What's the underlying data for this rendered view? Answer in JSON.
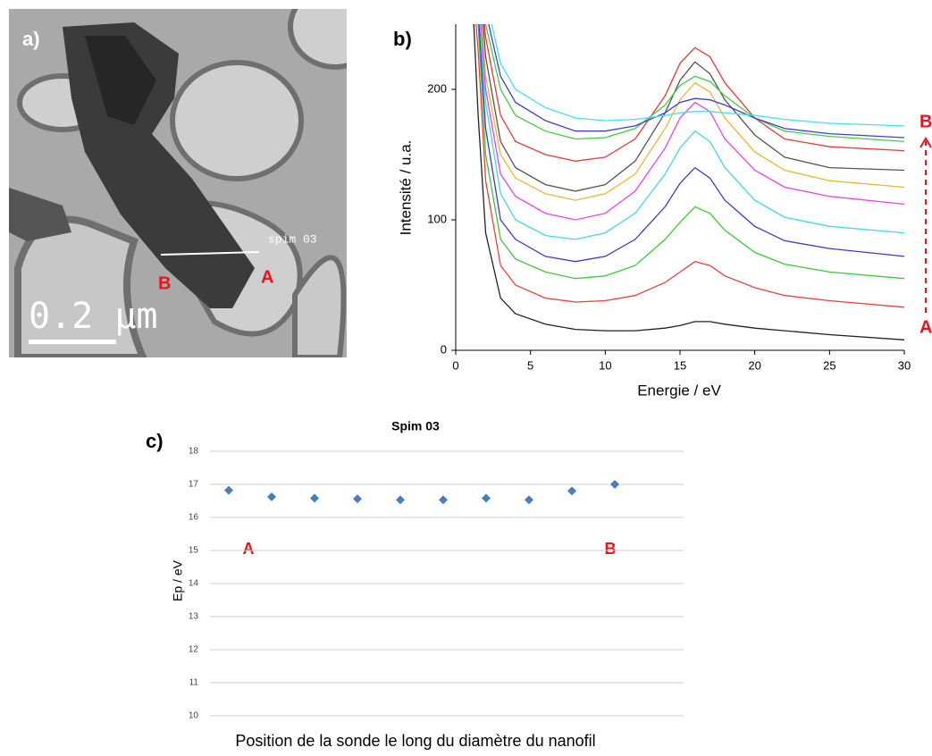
{
  "image_panel": {
    "label": "a)",
    "probe_label": "spim 03",
    "point_a": "A",
    "point_b": "B",
    "scale_bar": "0.2 µm"
  },
  "chart_data": [
    {
      "type": "line",
      "label": "b)",
      "xlabel": "Energie / eV",
      "ylabel": "Intensité / u.a.",
      "xlim": [
        0,
        30
      ],
      "xticks": [
        0,
        5,
        10,
        15,
        20,
        25,
        30
      ],
      "ylim": [
        0,
        250
      ],
      "yticks": [
        0,
        100,
        200
      ],
      "annotations": {
        "top": "B",
        "bottom": "A"
      },
      "x": [
        1,
        1.5,
        2,
        3,
        4,
        6,
        8,
        10,
        12,
        14,
        15,
        16,
        17,
        18,
        20,
        22,
        25,
        30
      ],
      "series": [
        {
          "color": "#222222",
          "values": [
            300,
            180,
            90,
            40,
            28,
            20,
            16,
            15,
            15,
            17,
            19,
            22,
            22,
            20,
            17,
            15,
            12,
            8
          ]
        },
        {
          "color": "#e8423f",
          "values": [
            300,
            230,
            130,
            65,
            50,
            40,
            37,
            38,
            42,
            52,
            60,
            68,
            65,
            57,
            48,
            42,
            38,
            33
          ]
        },
        {
          "color": "#3cc83c",
          "values": [
            300,
            250,
            150,
            85,
            70,
            60,
            55,
            57,
            65,
            85,
            98,
            110,
            105,
            92,
            75,
            66,
            60,
            55
          ]
        },
        {
          "color": "#3a3ad0",
          "values": [
            300,
            260,
            170,
            100,
            85,
            72,
            68,
            72,
            85,
            110,
            128,
            140,
            132,
            115,
            95,
            84,
            78,
            72
          ]
        },
        {
          "color": "#3fd8e8",
          "values": [
            300,
            270,
            190,
            120,
            100,
            88,
            85,
            90,
            105,
            135,
            155,
            168,
            160,
            140,
            115,
            102,
            95,
            90
          ]
        },
        {
          "color": "#e845e8",
          "values": [
            300,
            280,
            200,
            135,
            118,
            105,
            100,
            105,
            122,
            155,
            178,
            190,
            183,
            162,
            138,
            125,
            118,
            112
          ]
        },
        {
          "color": "#e8b830",
          "values": [
            300,
            290,
            210,
            150,
            132,
            120,
            115,
            120,
            135,
            170,
            192,
            205,
            198,
            178,
            152,
            138,
            130,
            125
          ]
        },
        {
          "color": "#555555",
          "values": [
            300,
            300,
            225,
            160,
            140,
            127,
            122,
            127,
            145,
            182,
            207,
            221,
            212,
            192,
            165,
            148,
            140,
            138
          ]
        },
        {
          "color": "#e03c3c",
          "values": [
            300,
            300,
            240,
            180,
            160,
            150,
            145,
            148,
            162,
            195,
            220,
            232,
            225,
            205,
            178,
            162,
            156,
            153
          ]
        },
        {
          "color": "#44cc44",
          "values": [
            300,
            300,
            250,
            200,
            180,
            168,
            162,
            163,
            170,
            188,
            203,
            210,
            206,
            195,
            178,
            168,
            164,
            160
          ]
        },
        {
          "color": "#4040d0",
          "values": [
            300,
            300,
            260,
            210,
            190,
            176,
            168,
            168,
            172,
            182,
            190,
            193,
            192,
            188,
            178,
            170,
            166,
            163
          ]
        },
        {
          "color": "#44e0ee",
          "values": [
            300,
            300,
            270,
            220,
            200,
            186,
            178,
            176,
            177,
            180,
            182,
            183,
            183,
            182,
            180,
            177,
            174,
            172
          ]
        }
      ]
    },
    {
      "type": "scatter",
      "label": "c)",
      "title": "Spim 03",
      "xlabel": "Position de la sonde le long du diamètre du nanofil",
      "ylabel": "Ep / eV",
      "categories": [
        null,
        null,
        null,
        null,
        null,
        null,
        null,
        null,
        null,
        null
      ],
      "values": [
        16.82,
        16.62,
        16.58,
        16.56,
        16.53,
        16.53,
        16.58,
        16.53,
        16.8,
        17.0
      ],
      "color": "#4a7ebb",
      "ylim": [
        10,
        18
      ],
      "yticks": [
        10,
        11,
        12,
        13,
        14,
        15,
        16,
        17,
        18
      ],
      "grid": true,
      "annotations": {
        "start": "A",
        "end": "B"
      }
    }
  ]
}
